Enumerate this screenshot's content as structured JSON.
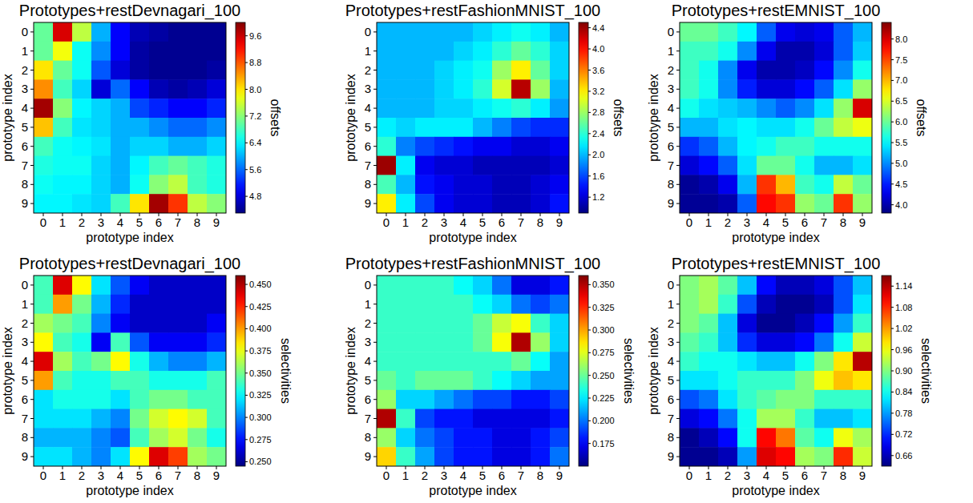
{
  "chart_data": [
    {
      "type": "heatmap",
      "title": "Prototypes+restDevnagari_100",
      "x_label": "prototype index",
      "y_label": "prototype index",
      "xlim": [
        -0.5,
        9.5
      ],
      "ylim": [
        9.5,
        -0.5
      ],
      "xticks": [
        0,
        1,
        2,
        3,
        4,
        5,
        6,
        7,
        8,
        9
      ],
      "yticks": [
        0,
        1,
        2,
        3,
        4,
        5,
        6,
        7,
        8,
        9
      ],
      "values": [
        [
          7.0,
          9.5,
          7.5,
          6.0,
          5.0,
          4.6,
          4.5,
          4.4,
          4.4,
          4.4
        ],
        [
          7.0,
          7.8,
          6.5,
          5.8,
          5.0,
          4.5,
          4.4,
          4.4,
          4.4,
          4.4
        ],
        [
          8.0,
          7.0,
          6.5,
          5.5,
          4.8,
          4.5,
          4.4,
          4.4,
          4.4,
          4.5
        ],
        [
          8.5,
          6.8,
          6.2,
          4.8,
          5.6,
          5.0,
          4.6,
          4.5,
          4.6,
          4.8
        ],
        [
          9.8,
          7.2,
          6.4,
          6.2,
          6.0,
          5.4,
          5.2,
          5.0,
          5.0,
          5.2
        ],
        [
          8.2,
          6.8,
          6.3,
          6.2,
          6.0,
          6.0,
          5.8,
          5.6,
          5.6,
          5.8
        ],
        [
          6.8,
          6.5,
          6.4,
          6.3,
          6.0,
          6.2,
          6.2,
          6.0,
          6.0,
          6.2
        ],
        [
          6.6,
          6.5,
          6.5,
          6.2,
          6.0,
          6.4,
          6.8,
          7.0,
          6.8,
          6.6
        ],
        [
          6.5,
          6.4,
          6.4,
          6.2,
          6.0,
          6.5,
          7.2,
          7.5,
          6.8,
          6.6
        ],
        [
          6.4,
          6.4,
          6.3,
          6.2,
          6.8,
          8.0,
          9.8,
          9.0,
          7.5,
          7.2
        ]
      ],
      "colorbar": {
        "label": "offsets",
        "range": [
          4.3,
          10.0
        ],
        "ticks": [
          4.8,
          5.6,
          6.4,
          7.2,
          {
            "value": 8.0,
            "label": "8.0"
          },
          8.8,
          9.6
        ]
      }
    },
    {
      "type": "heatmap",
      "title": "Prototypes+restFashionMNIST_100",
      "x_label": "prototype index",
      "y_label": "prototype index",
      "xlim": [
        -0.5,
        9.5
      ],
      "ylim": [
        9.5,
        -0.5
      ],
      "xticks": [
        0,
        1,
        2,
        3,
        4,
        5,
        6,
        7,
        8,
        9
      ],
      "yticks": [
        0,
        1,
        2,
        3,
        4,
        5,
        6,
        7,
        8,
        9
      ],
      "values": [
        [
          2.0,
          2.0,
          2.0,
          2.0,
          2.0,
          2.1,
          2.2,
          2.3,
          2.2,
          2.0
        ],
        [
          2.0,
          2.0,
          2.0,
          2.0,
          2.1,
          2.2,
          2.4,
          2.6,
          2.4,
          2.1
        ],
        [
          2.0,
          2.0,
          2.0,
          2.1,
          2.2,
          2.3,
          2.8,
          3.2,
          2.6,
          2.1
        ],
        [
          2.0,
          2.0,
          2.0,
          2.1,
          2.2,
          2.4,
          3.0,
          4.3,
          2.8,
          2.0
        ],
        [
          2.0,
          2.0,
          2.0,
          2.1,
          2.1,
          2.2,
          2.3,
          2.4,
          2.2,
          1.9
        ],
        [
          2.2,
          2.1,
          2.2,
          2.2,
          2.2,
          2.0,
          1.8,
          1.6,
          1.5,
          1.5
        ],
        [
          2.4,
          1.8,
          1.6,
          1.5,
          1.4,
          1.3,
          1.3,
          1.2,
          1.2,
          1.3
        ],
        [
          4.4,
          2.2,
          1.3,
          1.2,
          1.2,
          1.1,
          1.1,
          1.1,
          1.1,
          1.2
        ],
        [
          2.5,
          2.0,
          1.4,
          1.3,
          1.2,
          1.2,
          1.1,
          1.1,
          1.2,
          1.3
        ],
        [
          3.2,
          2.2,
          1.6,
          1.3,
          1.2,
          1.2,
          1.1,
          1.1,
          1.2,
          1.4
        ]
      ],
      "colorbar": {
        "label": "offsets",
        "range": [
          0.9,
          4.5
        ],
        "ticks": [
          1.2,
          1.6,
          {
            "value": 2.0,
            "label": "2.0"
          },
          2.4,
          2.8,
          3.2,
          3.6,
          {
            "value": 4.0,
            "label": "4.0"
          },
          4.4
        ]
      }
    },
    {
      "type": "heatmap",
      "title": "Prototypes+restEMNIST_100",
      "x_label": "prototype index",
      "y_label": "prototype index",
      "xlim": [
        -0.5,
        9.5
      ],
      "ylim": [
        9.5,
        -0.5
      ],
      "xticks": [
        0,
        1,
        2,
        3,
        4,
        5,
        6,
        7,
        8,
        9
      ],
      "yticks": [
        0,
        1,
        2,
        3,
        4,
        5,
        6,
        7,
        8,
        9
      ],
      "values": [
        [
          6.0,
          6.0,
          5.8,
          5.5,
          4.8,
          4.3,
          4.2,
          4.3,
          4.8,
          5.2
        ],
        [
          5.8,
          5.8,
          5.6,
          5.0,
          4.3,
          4.0,
          4.0,
          4.2,
          4.8,
          5.3
        ],
        [
          5.8,
          5.6,
          5.0,
          4.3,
          4.0,
          4.0,
          4.1,
          4.4,
          5.0,
          5.6
        ],
        [
          5.8,
          5.6,
          5.0,
          4.5,
          4.2,
          4.2,
          4.4,
          4.8,
          5.4,
          6.2
        ],
        [
          5.6,
          5.4,
          5.3,
          5.2,
          5.0,
          4.8,
          5.0,
          5.4,
          6.2,
          8.0
        ],
        [
          5.2,
          5.2,
          5.4,
          5.5,
          5.4,
          5.4,
          5.6,
          6.0,
          6.4,
          6.6
        ],
        [
          4.6,
          4.8,
          5.2,
          5.5,
          5.6,
          5.8,
          5.8,
          5.6,
          5.6,
          5.6
        ],
        [
          4.2,
          4.4,
          4.8,
          5.4,
          6.0,
          6.0,
          5.6,
          5.2,
          5.2,
          5.4
        ],
        [
          3.9,
          4.0,
          4.3,
          5.2,
          7.6,
          7.0,
          5.8,
          5.6,
          6.4,
          6.0
        ],
        [
          3.9,
          3.9,
          4.0,
          4.8,
          7.8,
          7.6,
          6.2,
          6.0,
          7.6,
          6.2
        ]
      ],
      "colorbar": {
        "label": "offsets",
        "range": [
          3.8,
          8.4
        ],
        "ticks": [
          {
            "value": 4.0,
            "label": "4.0"
          },
          4.5,
          {
            "value": 5.0,
            "label": "5.0"
          },
          5.5,
          {
            "value": 6.0,
            "label": "6.0"
          },
          6.5,
          {
            "value": 7.0,
            "label": "7.0"
          },
          7.5,
          {
            "value": 8.0,
            "label": "8.0"
          }
        ]
      }
    },
    {
      "type": "heatmap",
      "title": "Prototypes+restDevnagari_100",
      "x_label": "prototype index",
      "y_label": "prototype index",
      "xlim": [
        -0.5,
        9.5
      ],
      "ylim": [
        9.5,
        -0.5
      ],
      "xticks": [
        0,
        1,
        2,
        3,
        4,
        5,
        6,
        7,
        8,
        9
      ],
      "yticks": [
        0,
        1,
        2,
        3,
        4,
        5,
        6,
        7,
        8,
        9
      ],
      "values": [
        [
          0.34,
          0.44,
          0.38,
          0.32,
          0.29,
          0.27,
          0.26,
          0.26,
          0.26,
          0.26
        ],
        [
          0.34,
          0.4,
          0.35,
          0.31,
          0.28,
          0.26,
          0.26,
          0.26,
          0.26,
          0.26
        ],
        [
          0.36,
          0.35,
          0.34,
          0.3,
          0.27,
          0.26,
          0.26,
          0.26,
          0.26,
          0.27
        ],
        [
          0.38,
          0.34,
          0.33,
          0.27,
          0.34,
          0.29,
          0.27,
          0.27,
          0.27,
          0.28
        ],
        [
          0.44,
          0.36,
          0.34,
          0.35,
          0.38,
          0.33,
          0.31,
          0.3,
          0.3,
          0.31
        ],
        [
          0.4,
          0.34,
          0.33,
          0.33,
          0.34,
          0.34,
          0.33,
          0.33,
          0.33,
          0.34
        ],
        [
          0.32,
          0.33,
          0.33,
          0.33,
          0.32,
          0.34,
          0.35,
          0.35,
          0.34,
          0.34
        ],
        [
          0.32,
          0.32,
          0.32,
          0.31,
          0.3,
          0.35,
          0.37,
          0.38,
          0.37,
          0.34
        ],
        [
          0.31,
          0.31,
          0.31,
          0.3,
          0.29,
          0.34,
          0.36,
          0.37,
          0.35,
          0.33
        ],
        [
          0.32,
          0.32,
          0.31,
          0.3,
          0.32,
          0.38,
          0.44,
          0.42,
          0.36,
          0.35
        ]
      ],
      "colorbar": {
        "label": "selectivities",
        "range": [
          0.245,
          0.46
        ],
        "ticks": [
          {
            "value": 0.25,
            "label": "0.250"
          },
          0.275,
          {
            "value": 0.3,
            "label": "0.300"
          },
          0.325,
          {
            "value": 0.35,
            "label": "0.350"
          },
          0.375,
          {
            "value": 0.4,
            "label": "0.400"
          },
          0.425,
          {
            "value": 0.45,
            "label": "0.450"
          }
        ]
      }
    },
    {
      "type": "heatmap",
      "title": "Prototypes+restFashionMNIST_100",
      "x_label": "prototype index",
      "y_label": "prototype index",
      "xlim": [
        -0.5,
        9.5
      ],
      "ylim": [
        9.5,
        -0.5
      ],
      "xticks": [
        0,
        1,
        2,
        3,
        4,
        5,
        6,
        7,
        8,
        9
      ],
      "yticks": [
        0,
        1,
        2,
        3,
        4,
        5,
        6,
        7,
        8,
        9
      ],
      "values": [
        [
          0.24,
          0.24,
          0.24,
          0.24,
          0.23,
          0.22,
          0.2,
          0.17,
          0.17,
          0.18
        ],
        [
          0.24,
          0.24,
          0.24,
          0.24,
          0.24,
          0.23,
          0.22,
          0.2,
          0.19,
          0.2
        ],
        [
          0.24,
          0.24,
          0.24,
          0.24,
          0.24,
          0.25,
          0.27,
          0.28,
          0.24,
          0.22
        ],
        [
          0.24,
          0.24,
          0.24,
          0.24,
          0.24,
          0.25,
          0.28,
          0.35,
          0.26,
          0.22
        ],
        [
          0.24,
          0.24,
          0.24,
          0.24,
          0.24,
          0.24,
          0.24,
          0.25,
          0.23,
          0.21
        ],
        [
          0.25,
          0.24,
          0.25,
          0.25,
          0.25,
          0.24,
          0.23,
          0.22,
          0.21,
          0.21
        ],
        [
          0.26,
          0.22,
          0.22,
          0.21,
          0.2,
          0.19,
          0.19,
          0.18,
          0.18,
          0.19
        ],
        [
          0.35,
          0.24,
          0.19,
          0.18,
          0.18,
          0.17,
          0.17,
          0.17,
          0.17,
          0.18
        ],
        [
          0.26,
          0.22,
          0.2,
          0.19,
          0.18,
          0.18,
          0.17,
          0.17,
          0.18,
          0.19
        ],
        [
          0.29,
          0.24,
          0.21,
          0.19,
          0.18,
          0.18,
          0.17,
          0.17,
          0.18,
          0.2
        ]
      ],
      "colorbar": {
        "label": "selectivities",
        "range": [
          0.15,
          0.36
        ],
        "ticks": [
          0.175,
          {
            "value": 0.2,
            "label": "0.200"
          },
          0.225,
          {
            "value": 0.25,
            "label": "0.250"
          },
          0.275,
          {
            "value": 0.3,
            "label": "0.300"
          },
          0.325,
          {
            "value": 0.35,
            "label": "0.350"
          }
        ]
      }
    },
    {
      "type": "heatmap",
      "title": "Prototypes+restEMNIST_100",
      "x_label": "prototype index",
      "y_label": "prototype index",
      "xlim": [
        -0.5,
        9.5
      ],
      "ylim": [
        9.5,
        -0.5
      ],
      "xticks": [
        0,
        1,
        2,
        3,
        4,
        5,
        6,
        7,
        8,
        9
      ],
      "yticks": [
        0,
        1,
        2,
        3,
        4,
        5,
        6,
        7,
        8,
        9
      ],
      "values": [
        [
          0.9,
          0.92,
          0.88,
          0.8,
          0.7,
          0.66,
          0.66,
          0.68,
          0.74,
          0.8
        ],
        [
          0.9,
          0.92,
          0.86,
          0.74,
          0.66,
          0.64,
          0.64,
          0.66,
          0.74,
          0.82
        ],
        [
          0.9,
          0.88,
          0.8,
          0.68,
          0.64,
          0.64,
          0.66,
          0.7,
          0.78,
          0.86
        ],
        [
          0.88,
          0.86,
          0.8,
          0.72,
          0.68,
          0.68,
          0.7,
          0.76,
          0.84,
          0.94
        ],
        [
          0.86,
          0.84,
          0.84,
          0.82,
          0.8,
          0.8,
          0.84,
          0.9,
          0.98,
          1.14
        ],
        [
          0.82,
          0.82,
          0.84,
          0.86,
          0.86,
          0.86,
          0.9,
          0.96,
          1.0,
          0.98
        ],
        [
          0.74,
          0.76,
          0.82,
          0.86,
          0.88,
          0.9,
          0.9,
          0.86,
          0.86,
          0.86
        ],
        [
          0.68,
          0.7,
          0.76,
          0.84,
          0.92,
          0.92,
          0.86,
          0.8,
          0.8,
          0.82
        ],
        [
          0.64,
          0.66,
          0.7,
          0.84,
          1.1,
          1.04,
          0.88,
          0.84,
          0.96,
          0.92
        ],
        [
          0.64,
          0.64,
          0.66,
          0.78,
          1.12,
          1.1,
          0.92,
          0.9,
          1.08,
          0.94
        ]
      ],
      "colorbar": {
        "label": "selectivities",
        "range": [
          0.63,
          1.17
        ],
        "ticks": [
          0.66,
          0.72,
          0.78,
          0.84,
          {
            "value": 0.9,
            "label": "0.90"
          },
          0.96,
          1.02,
          1.08,
          1.14
        ]
      }
    }
  ]
}
